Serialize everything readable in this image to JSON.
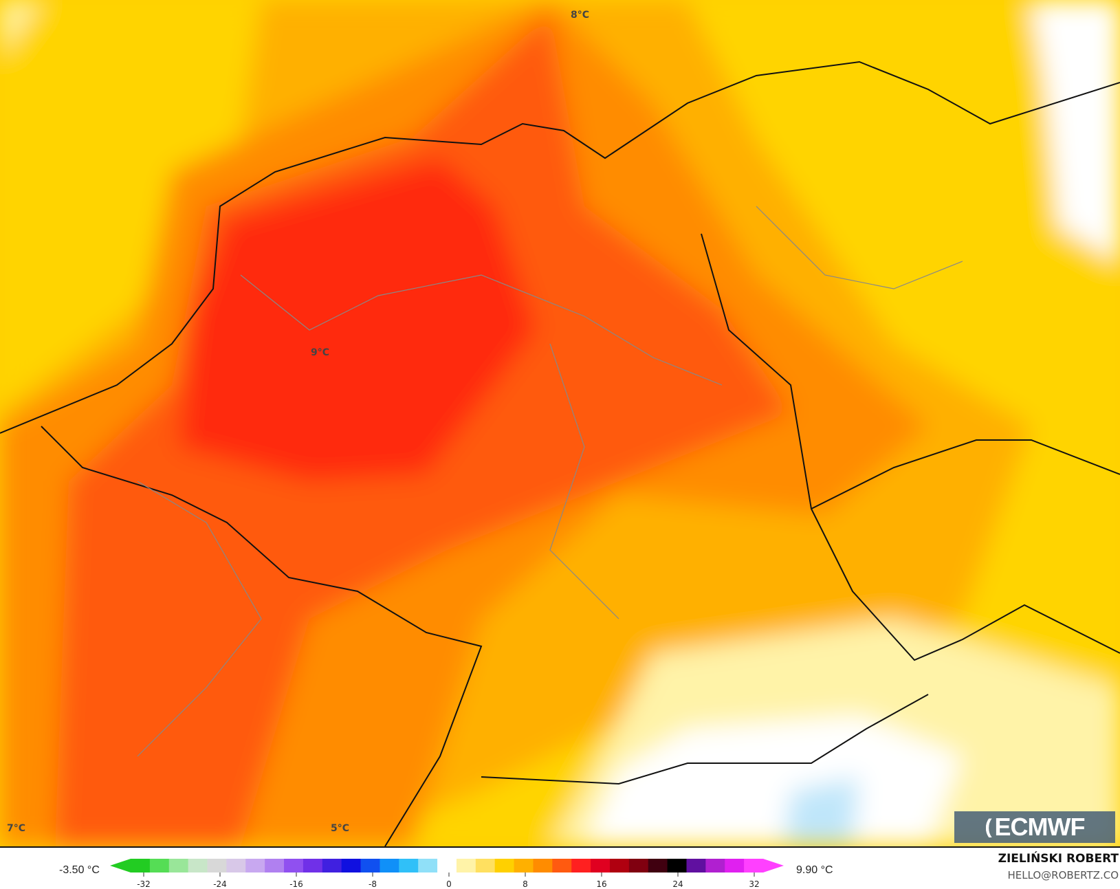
{
  "map": {
    "labels": [
      "8°C",
      "9°C",
      "7°C",
      "5°C"
    ],
    "colors": {
      "light_yellow": "#fff3a8",
      "yellow": "#ffd400",
      "orange_yellow": "#ffb000",
      "orange": "#ff8c00",
      "dark_orange": "#ff5a10",
      "red": "#ff2a10",
      "white": "#ffffff",
      "light_blue": "#a8dcf8"
    }
  },
  "logo": {
    "text": "ECMWF"
  },
  "colorbar": {
    "min_label": "-3.50 °C",
    "max_label": "9.90 °C",
    "ticks": [
      "-32",
      "-24",
      "-16",
      "-8",
      "0",
      "8",
      "16",
      "24",
      "32"
    ],
    "colors": [
      "#22cc22",
      "#55dd55",
      "#99e699",
      "#c8e6c8",
      "#d8d8d8",
      "#d8c8e8",
      "#c8a8f0",
      "#b080f0",
      "#9050f0",
      "#7030e8",
      "#4020e0",
      "#1010e0",
      "#1050f0",
      "#1090f8",
      "#30c0f8",
      "#90e0f8",
      "#ffffff",
      "#fff3a8",
      "#ffe060",
      "#ffd000",
      "#ffb000",
      "#ff8c00",
      "#ff5a10",
      "#ff2020",
      "#e00020",
      "#b00010",
      "#800010",
      "#400010",
      "#000000",
      "#6010a0",
      "#b020d0",
      "#e020f0",
      "#ff40ff"
    ]
  },
  "credits": {
    "author": "ZIELIŃSKI ROBERT",
    "email": "HELLO@ROBERTZ.CO"
  }
}
